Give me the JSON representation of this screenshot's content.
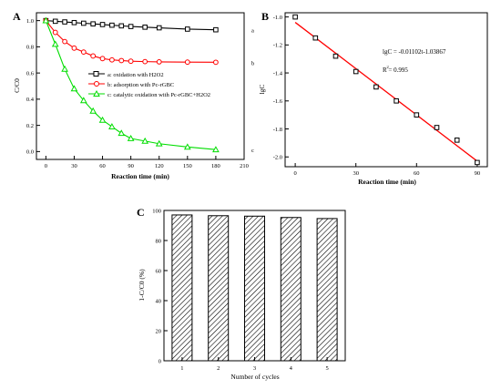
{
  "chart_data": [
    {
      "panel": "A",
      "type": "line",
      "xlabel": "Reaction time (min)",
      "ylabel": "C/C0",
      "xlim": [
        -10,
        210
      ],
      "ylim": [
        -0.06,
        1.06
      ],
      "xticks": [
        0,
        30,
        60,
        90,
        120,
        150,
        180,
        210
      ],
      "yticks": [
        0.0,
        0.2,
        0.4,
        0.6,
        0.8,
        1.0
      ],
      "xtick_labels": [
        "0",
        "30",
        "60",
        "90",
        "120",
        "150",
        "180",
        "210"
      ],
      "ytick_labels": [
        "0.0",
        "0.2",
        "0.4",
        "0.6",
        "0.8",
        "1.0"
      ],
      "legend_placement": "center-right",
      "series": [
        {
          "name": "a: oxidation with H2O2",
          "tag": "a",
          "color": "#000000",
          "marker": "square",
          "x": [
            0,
            10,
            20,
            30,
            40,
            50,
            60,
            70,
            80,
            90,
            105,
            120,
            150,
            180
          ],
          "y": [
            1.0,
            0.995,
            0.99,
            0.985,
            0.98,
            0.975,
            0.97,
            0.965,
            0.96,
            0.955,
            0.95,
            0.945,
            0.935,
            0.93
          ]
        },
        {
          "name": "b: adsorption with Pc-rGBC",
          "tag": "b",
          "color": "#ff0000",
          "marker": "circle",
          "x": [
            0,
            10,
            20,
            30,
            40,
            50,
            60,
            70,
            80,
            90,
            105,
            120,
            150,
            180
          ],
          "y": [
            1.0,
            0.91,
            0.84,
            0.79,
            0.76,
            0.73,
            0.71,
            0.7,
            0.695,
            0.69,
            0.687,
            0.685,
            0.683,
            0.682
          ]
        },
        {
          "name": "c: catalytic oxidation with Pc-rGBC+H2O2",
          "tag": "c",
          "color": "#00dd00",
          "marker": "triangle",
          "x": [
            0,
            10,
            20,
            30,
            40,
            50,
            60,
            70,
            80,
            90,
            105,
            120,
            150,
            180
          ],
          "y": [
            1.0,
            0.82,
            0.63,
            0.48,
            0.39,
            0.31,
            0.24,
            0.19,
            0.14,
            0.1,
            0.08,
            0.06,
            0.035,
            0.015
          ]
        }
      ]
    },
    {
      "panel": "B",
      "type": "scatter",
      "xlabel": "Reaction time (min)",
      "ylabel": "lgC",
      "xlim": [
        -5,
        95
      ],
      "ylim": [
        -2.07,
        -0.97
      ],
      "xticks": [
        0,
        30,
        60,
        90
      ],
      "yticks": [
        -2.0,
        -1.8,
        -1.6,
        -1.4,
        -1.2,
        -1.0
      ],
      "xtick_labels": [
        "0",
        "30",
        "60",
        "90"
      ],
      "ytick_labels": [
        "-2.0",
        "-1.8",
        "-1.6",
        "-1.4",
        "-1.2",
        "-1.0"
      ],
      "points": {
        "x": [
          0,
          10,
          20,
          30,
          40,
          50,
          60,
          70,
          80,
          90
        ],
        "y": [
          -1.0,
          -1.15,
          -1.28,
          -1.39,
          -1.5,
          -1.6,
          -1.7,
          -1.79,
          -1.88,
          -2.04
        ]
      },
      "fit": {
        "color": "#ff0000",
        "x": [
          0,
          90
        ],
        "y": [
          -1.03867,
          -2.03047
        ],
        "equation": "lgC = -0.01102t-1.03867",
        "r2": "R  = 0.995",
        "r2_sup": "2"
      }
    },
    {
      "panel": "C",
      "type": "bar",
      "xlabel": "Number of cycles",
      "ylabel": "1-C/C0 (%)",
      "ylim": [
        0,
        100
      ],
      "yticks": [
        0,
        20,
        40,
        60,
        80,
        100
      ],
      "ytick_labels": [
        "0",
        "20",
        "40",
        "60",
        "80",
        "100"
      ],
      "categories": [
        "1",
        "2",
        "3",
        "4",
        "5"
      ],
      "values": [
        97,
        96.5,
        96.2,
        95.3,
        94.6
      ],
      "fill": "hatched"
    }
  ]
}
